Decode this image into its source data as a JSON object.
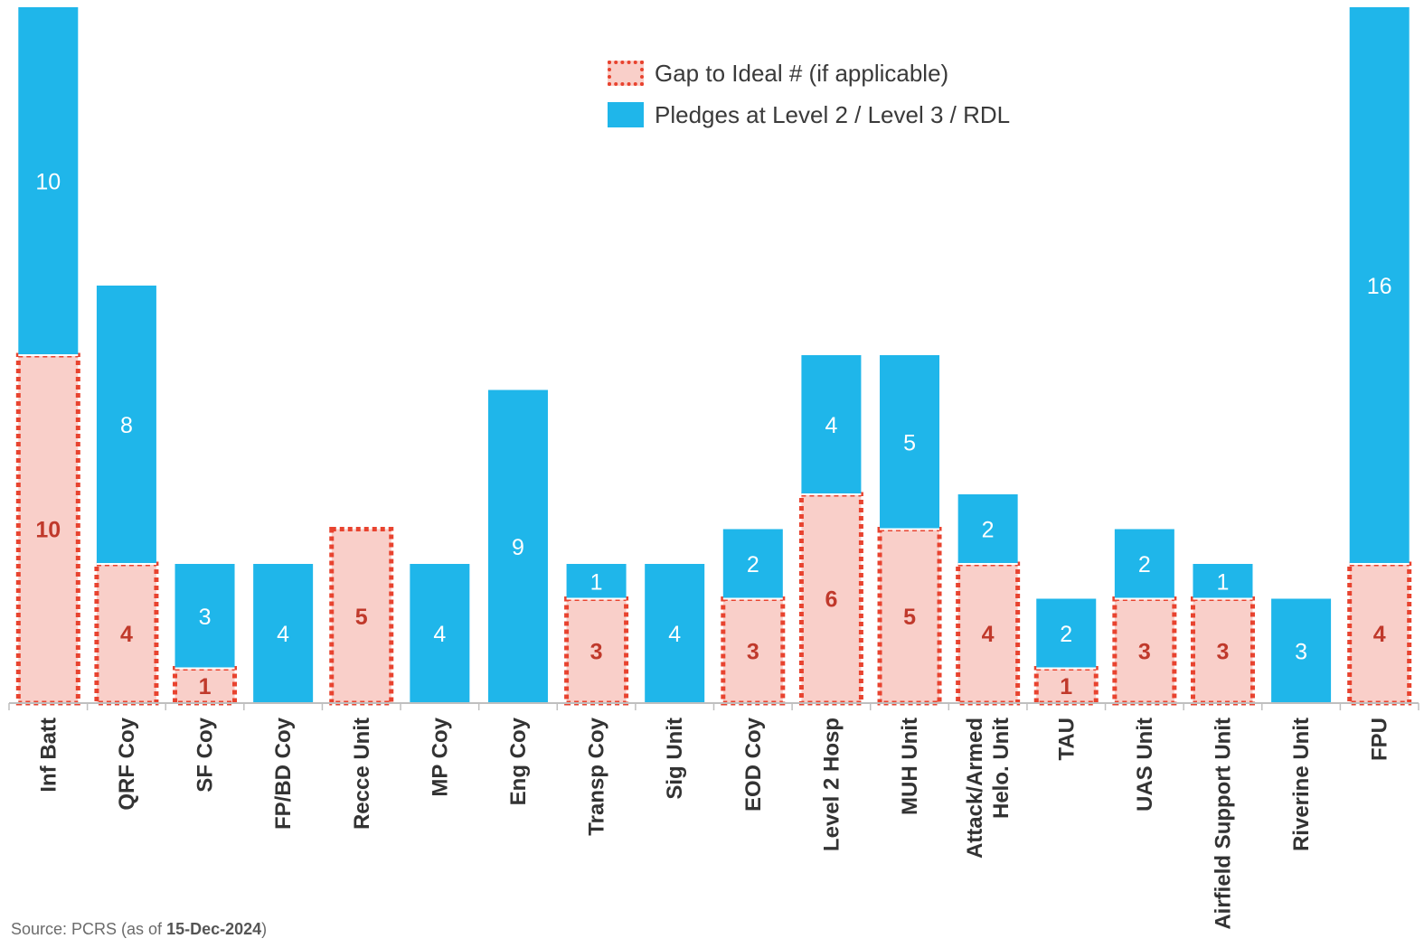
{
  "chart_data": {
    "type": "bar",
    "stacked": true,
    "categories": [
      "Inf Batt",
      "QRF Coy",
      "SF Coy",
      "FP/BD Coy",
      "Recce Unit",
      "MP Coy",
      "Eng Coy",
      "Transp Coy",
      "Sig Unit",
      "EOD Coy",
      "Level 2 Hosp",
      "MUH Unit",
      "Attack/Armed Helo. Unit",
      "TAU",
      "UAS Unit",
      "Airfield Support Unit",
      "Riverine Unit",
      "FPU"
    ],
    "category_lines": [
      [
        "Inf Batt"
      ],
      [
        "QRF Coy"
      ],
      [
        "SF Coy"
      ],
      [
        "FP/BD Coy"
      ],
      [
        "Recce Unit"
      ],
      [
        "MP Coy"
      ],
      [
        "Eng Coy"
      ],
      [
        "Transp Coy"
      ],
      [
        "Sig Unit"
      ],
      [
        "EOD Coy"
      ],
      [
        "Level 2 Hosp"
      ],
      [
        "MUH Unit"
      ],
      [
        "Attack/Armed",
        "Helo. Unit"
      ],
      [
        "TAU"
      ],
      [
        "UAS Unit"
      ],
      [
        "Airfield Support Unit"
      ],
      [
        "Riverine Unit"
      ],
      [
        "FPU"
      ]
    ],
    "series": [
      {
        "name": "Gap to Ideal #  (if applicable)",
        "values": [
          10,
          4,
          1,
          0,
          5,
          0,
          0,
          3,
          0,
          3,
          6,
          5,
          4,
          1,
          3,
          3,
          0,
          4
        ],
        "color": "#f9cfc9",
        "border_color": "#e8432f",
        "label_color": "#c0392b"
      },
      {
        "name": "Pledges at Level 2 / Level 3 / RDL",
        "values": [
          10,
          8,
          3,
          4,
          0,
          4,
          9,
          1,
          4,
          2,
          4,
          5,
          2,
          2,
          2,
          1,
          3,
          16
        ],
        "color": "#1fb6ea",
        "label_color": "#ffffff"
      }
    ],
    "ylim": [
      0,
      20
    ],
    "grid": false,
    "legend_position": "top-center"
  },
  "source": {
    "prefix": "Source: PCRS (as of ",
    "date": "15-Dec-2024",
    "suffix": ")"
  }
}
